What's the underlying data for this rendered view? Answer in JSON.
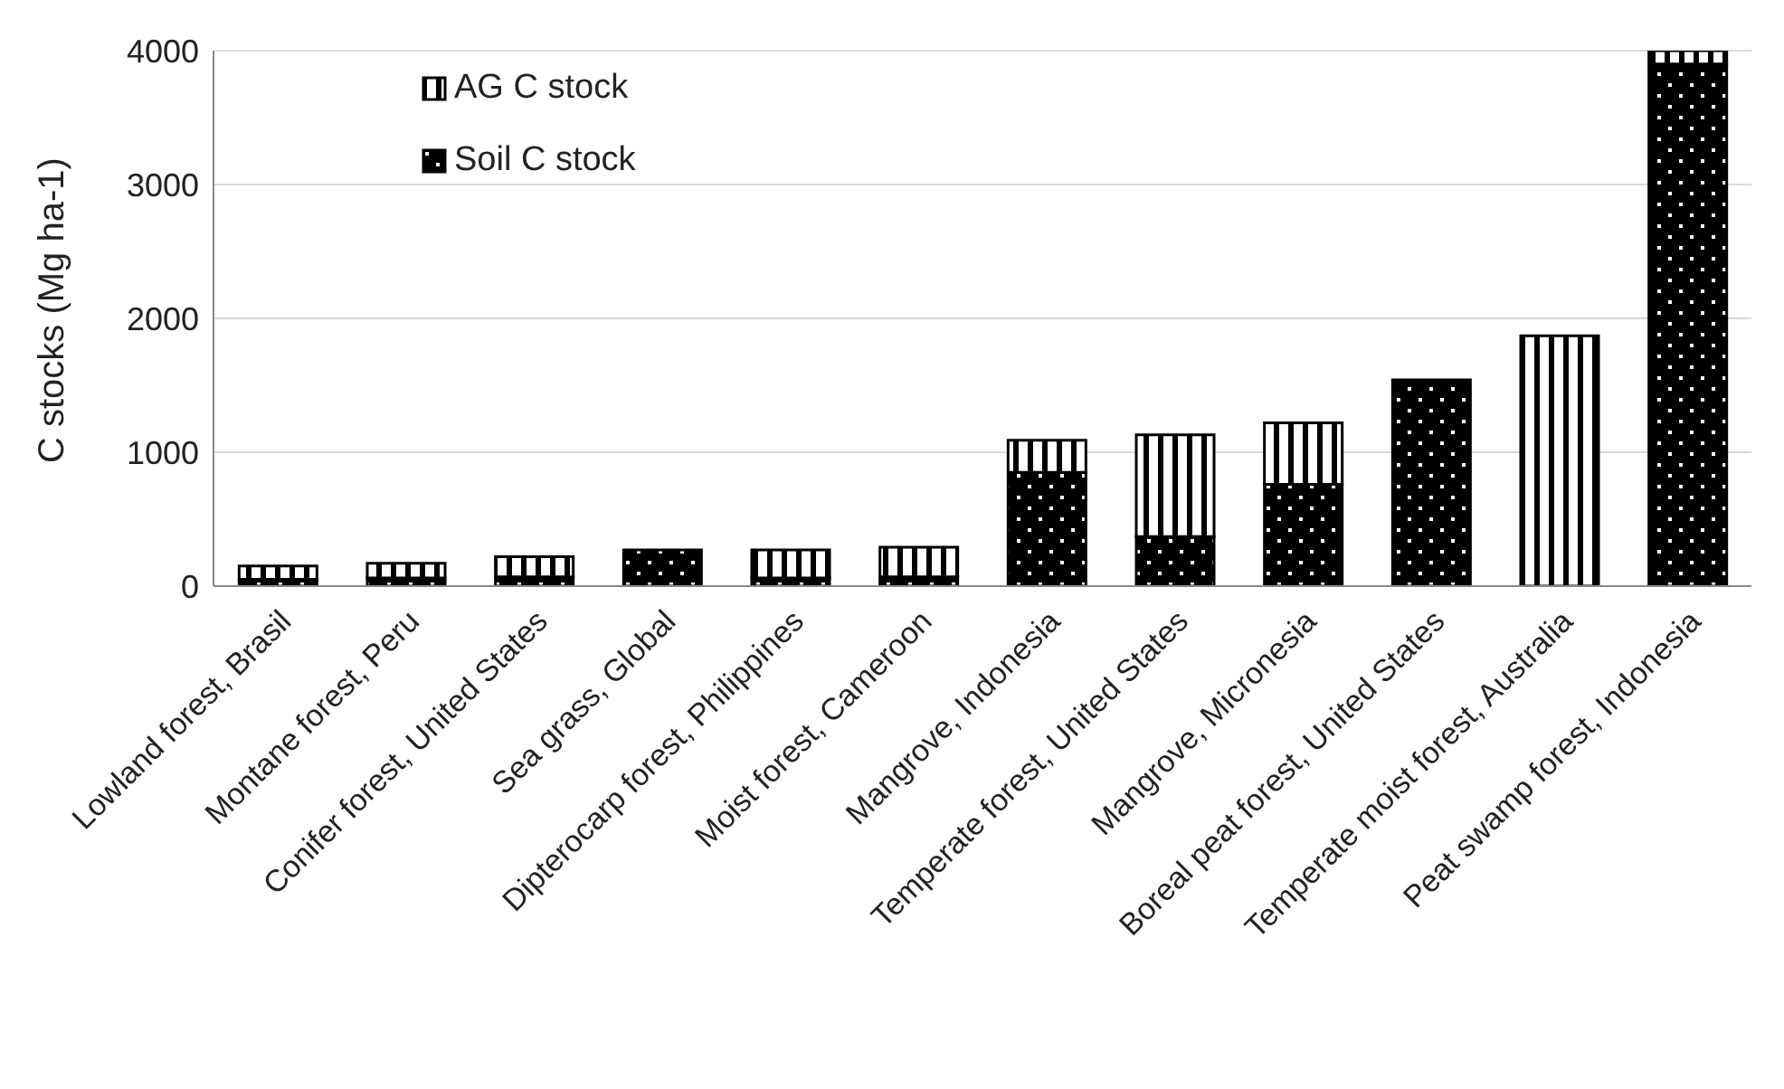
{
  "chart_data": {
    "type": "bar",
    "ylabel": "C stocks (Mg ha-1)",
    "stacked": true,
    "categories": [
      "Lowland forest, Brasil",
      "Montane forest, Peru",
      "Conifer forest, United States",
      "Sea grass, Global",
      "Dipterocarp forest, Philippines",
      "Moist forest, Cameroon",
      "Mangrove, Indonesia",
      "Temperate forest, United States",
      "Mangrove, Micronesia",
      "Boreal peat forest, United States",
      "Temperate moist forest, Australia",
      "Peat swamp forest, Indonesia"
    ],
    "series": [
      {
        "name": "Soil C stock",
        "color": "#000000",
        "values": [
          50,
          60,
          70,
          270,
          60,
          70,
          850,
          370,
          760,
          1540,
          0,
          3900
        ]
      },
      {
        "name": "AG C stock",
        "color": "#000000",
        "values": [
          100,
          110,
          150,
          0,
          210,
          220,
          240,
          760,
          460,
          0,
          1870,
          100
        ]
      }
    ],
    "ylim": [
      0,
      4000
    ],
    "yticks": [
      0,
      1000,
      2000,
      3000,
      4000
    ],
    "grid": "y",
    "legend": "top left"
  }
}
